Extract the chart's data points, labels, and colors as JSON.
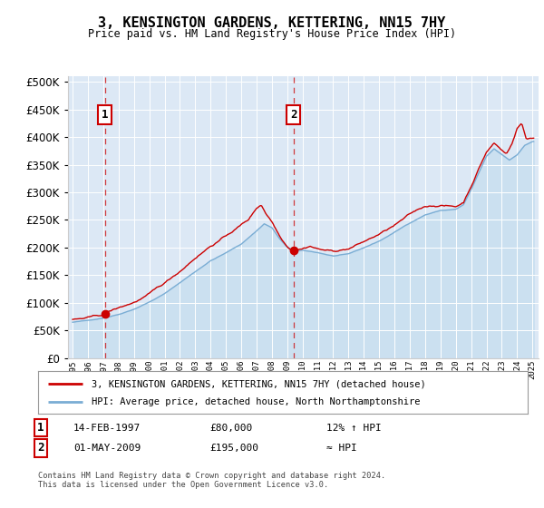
{
  "title": "3, KENSINGTON GARDENS, KETTERING, NN15 7HY",
  "subtitle": "Price paid vs. HM Land Registry's House Price Index (HPI)",
  "legend_line1": "3, KENSINGTON GARDENS, KETTERING, NN15 7HY (detached house)",
  "legend_line2": "HPI: Average price, detached house, North Northamptonshire",
  "annotation1_date": "14-FEB-1997",
  "annotation1_price": "£80,000",
  "annotation1_hpi": "12% ↑ HPI",
  "annotation1_year": 1997.12,
  "annotation1_value": 80000,
  "annotation2_date": "01-MAY-2009",
  "annotation2_price": "£195,000",
  "annotation2_hpi": "≈ HPI",
  "annotation2_year": 2009.42,
  "annotation2_value": 195000,
  "price_color": "#cc0000",
  "hpi_color": "#7aadd4",
  "hpi_fill_color": "#c8dff0",
  "yticks": [
    0,
    50000,
    100000,
    150000,
    200000,
    250000,
    300000,
    350000,
    400000,
    450000,
    500000
  ],
  "footer": "Contains HM Land Registry data © Crown copyright and database right 2024.\nThis data is licensed under the Open Government Licence v3.0.",
  "xtick_years": [
    1995,
    1996,
    1997,
    1998,
    1999,
    2000,
    2001,
    2002,
    2003,
    2004,
    2005,
    2006,
    2007,
    2008,
    2009,
    2010,
    2011,
    2012,
    2013,
    2014,
    2015,
    2016,
    2017,
    2018,
    2019,
    2020,
    2021,
    2022,
    2023,
    2024,
    2025
  ]
}
